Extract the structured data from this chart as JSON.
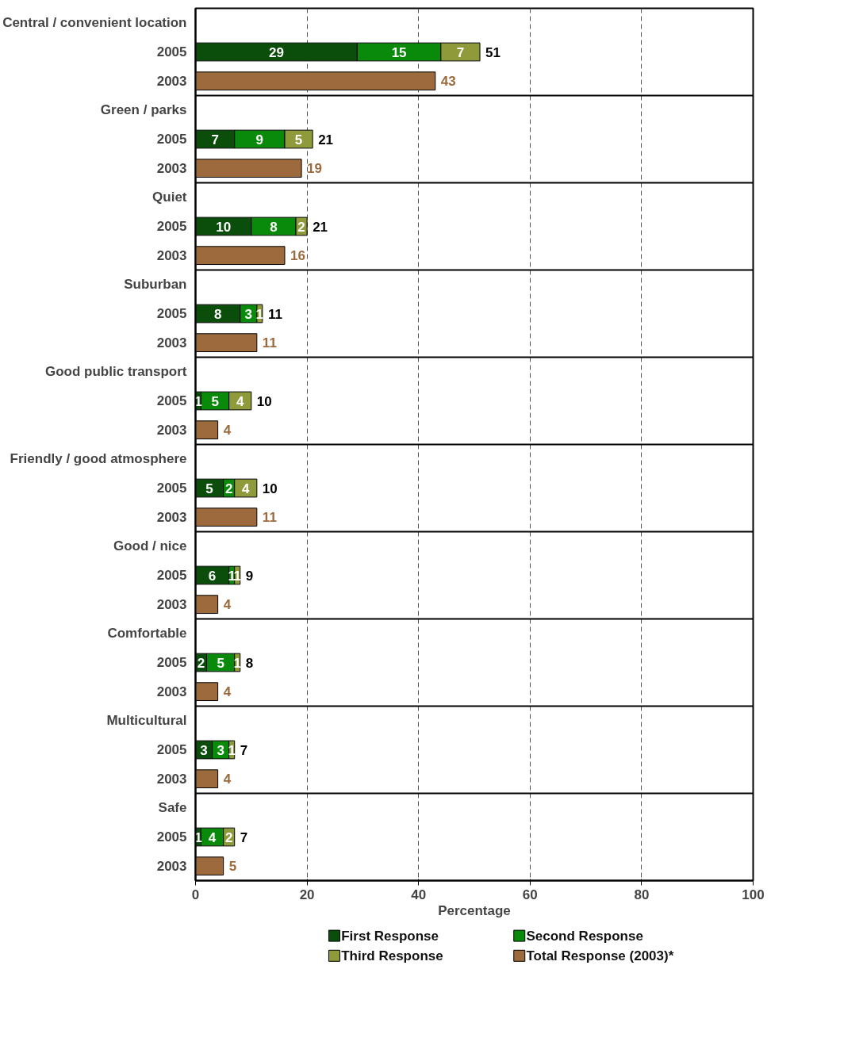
{
  "chart_data": {
    "type": "bar",
    "orientation": "horizontal",
    "stacked": true,
    "xlabel": "Percentage",
    "categories": [
      "Central / convenient location",
      "2005",
      "2003",
      "Green / parks",
      "2005",
      "2003",
      "Quiet",
      "2005",
      "2003",
      "Suburban",
      "2005",
      "2003",
      "Good public transport",
      "2005",
      "2003",
      "Friendly / good atmosphere",
      "2005",
      "2003",
      "Good / nice",
      "2005",
      "2003",
      "Comfortable",
      "2005",
      "2003",
      "Multicultural",
      "2005",
      "2003",
      "Safe",
      "2005",
      "2003"
    ],
    "series": [
      {
        "name": "First Response",
        "color": "#0b4d0b",
        "values": [
          null,
          29,
          null,
          null,
          7,
          null,
          null,
          10,
          null,
          null,
          8,
          null,
          null,
          1,
          null,
          null,
          5,
          null,
          null,
          6,
          null,
          null,
          2,
          null,
          null,
          3,
          null,
          null,
          1,
          null
        ]
      },
      {
        "name": "Second Response",
        "color": "#0a8a0a",
        "values": [
          null,
          15,
          null,
          null,
          9,
          null,
          null,
          8,
          null,
          null,
          3,
          null,
          null,
          5,
          null,
          null,
          2,
          null,
          null,
          1,
          null,
          null,
          5,
          null,
          null,
          3,
          null,
          null,
          4,
          null
        ]
      },
      {
        "name": "Third Response",
        "color": "#8f9a3a",
        "values": [
          null,
          7,
          null,
          null,
          5,
          null,
          null,
          2,
          null,
          null,
          1,
          null,
          null,
          4,
          null,
          null,
          4,
          null,
          null,
          1,
          null,
          null,
          1,
          null,
          null,
          1,
          null,
          null,
          2,
          null
        ]
      },
      {
        "name": "Total Response (2003)*",
        "color": "#9c6a3c",
        "values": [
          null,
          null,
          43,
          null,
          null,
          19,
          null,
          null,
          16,
          null,
          null,
          11,
          null,
          null,
          4,
          null,
          null,
          11,
          null,
          null,
          4,
          null,
          null,
          4,
          null,
          null,
          4,
          null,
          null,
          5
        ]
      }
    ],
    "totals": [
      null,
      "51",
      null,
      null,
      "21",
      null,
      null,
      "21",
      null,
      null,
      "11",
      null,
      null,
      "10",
      null,
      null,
      "10",
      null,
      null,
      "9",
      null,
      null,
      "8",
      null,
      null,
      "7",
      null,
      null,
      "7",
      null
    ],
    "data_labels": true,
    "xlim": [
      0,
      100
    ],
    "xticks": [
      0,
      20,
      40,
      60,
      80,
      100
    ],
    "grid": "x",
    "legend": "bottom"
  }
}
